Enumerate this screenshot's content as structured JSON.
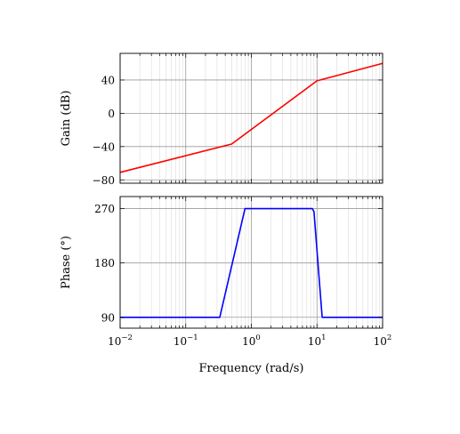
{
  "chart_data": [
    {
      "type": "line",
      "xscale": "log",
      "xlim": [
        0.01,
        100
      ],
      "ylim": [
        -84,
        72
      ],
      "yticks": [
        -80,
        -40,
        0,
        40
      ],
      "ytick_labels": [
        "−80",
        "−40",
        "0",
        "40"
      ],
      "ylabel": "Gain (dB)",
      "xlabel": "",
      "grid": "major and minor (x), major (y)",
      "series": [
        {
          "color": "#ff0000",
          "x": [
            0.01,
            0.5,
            10,
            100
          ],
          "y": [
            -71,
            -37,
            39,
            60
          ]
        }
      ]
    },
    {
      "type": "line",
      "xscale": "log",
      "xlim": [
        0.01,
        100
      ],
      "ylim": [
        72,
        290
      ],
      "yticks": [
        90,
        180,
        270
      ],
      "ytick_labels": [
        "90",
        "180",
        "270"
      ],
      "ylabel": "Phase (°)",
      "xlabel": "Frequency (rad/s)",
      "xticks": [
        0.01,
        0.1,
        1,
        10,
        100
      ],
      "xtick_labels": [
        {
          "base": "10",
          "exp": "−2"
        },
        {
          "base": "10",
          "exp": "−1"
        },
        {
          "base": "10",
          "exp": "0"
        },
        {
          "base": "10",
          "exp": "1"
        },
        {
          "base": "10",
          "exp": "2"
        }
      ],
      "grid": "major and minor (x), major (y)",
      "series": [
        {
          "color": "#0000ff",
          "x": [
            0.01,
            0.33,
            0.8,
            8.5,
            9,
            12,
            100
          ],
          "y": [
            90,
            90,
            270,
            270,
            265,
            90,
            90
          ]
        }
      ]
    }
  ]
}
